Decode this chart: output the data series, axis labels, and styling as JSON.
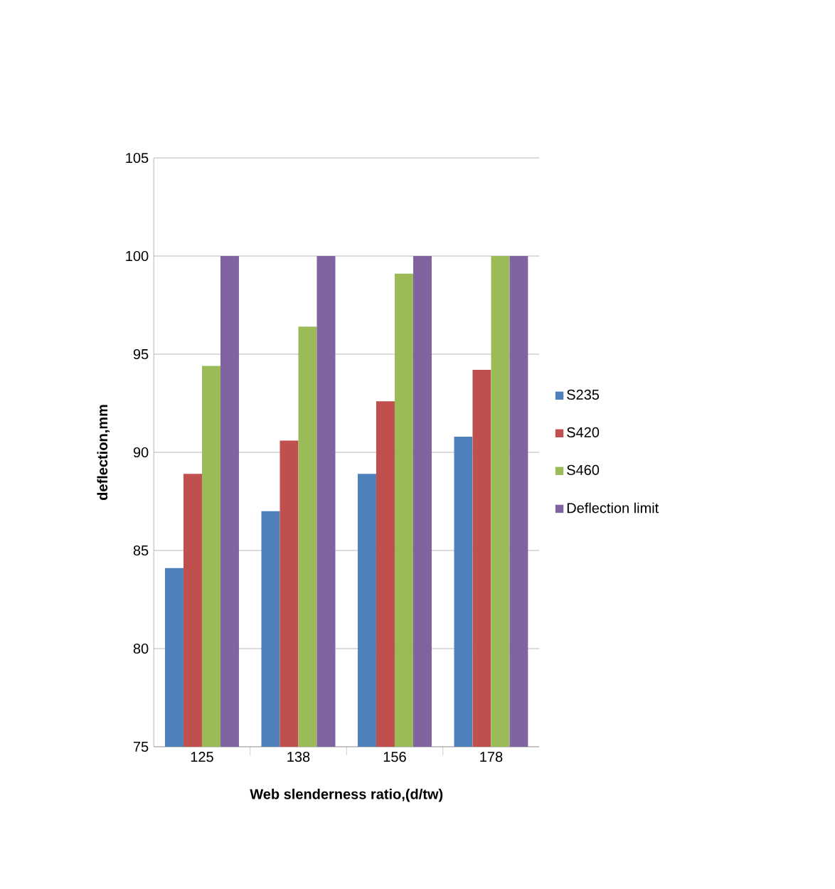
{
  "chart_data": {
    "type": "bar",
    "xlabel": "Web slenderness ratio,(d/tw)",
    "ylabel": "deflection,mm",
    "categories": [
      "125",
      "138",
      "156",
      "178"
    ],
    "series": [
      {
        "name": "S235",
        "color": "#4f81bd",
        "values": [
          84.1,
          87.0,
          88.9,
          90.8
        ]
      },
      {
        "name": "S420",
        "color": "#c0504d",
        "values": [
          88.9,
          90.6,
          92.6,
          94.2
        ]
      },
      {
        "name": "S460",
        "color": "#9bbb59",
        "values": [
          94.4,
          96.4,
          99.1,
          100
        ]
      },
      {
        "name": "Deflection limit",
        "color": "#8064a2",
        "values": [
          100,
          100,
          100,
          100
        ]
      }
    ],
    "ylim": [
      75,
      105
    ],
    "yticks": [
      75,
      80,
      85,
      90,
      95,
      100,
      105
    ],
    "grid": "y",
    "legend": "right"
  }
}
